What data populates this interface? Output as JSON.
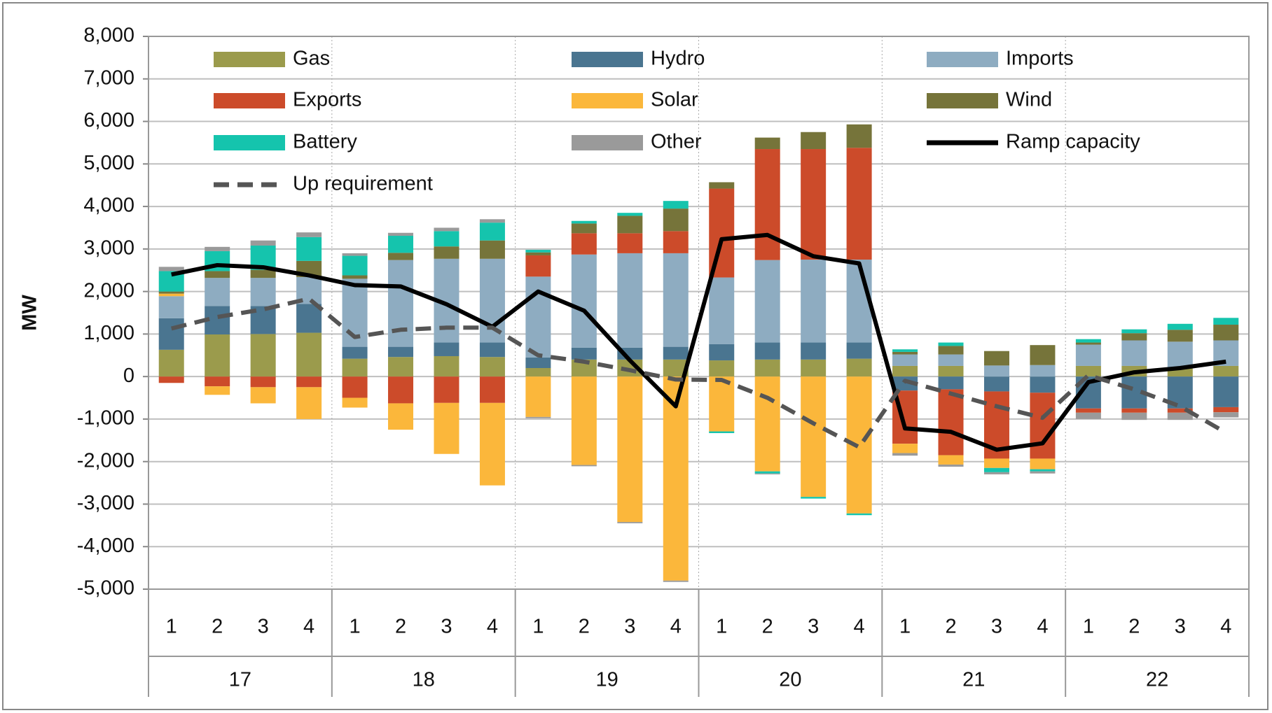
{
  "chart_data": {
    "type": "bar",
    "stacked": true,
    "ylabel": "MW",
    "ylim": [
      -5000,
      8000
    ],
    "yticks": [
      {
        "value": -5000,
        "label": "-5,000"
      },
      {
        "value": -4000,
        "label": "-4,000"
      },
      {
        "value": -3000,
        "label": "-3,000"
      },
      {
        "value": -2000,
        "label": "-2,000"
      },
      {
        "value": -1000,
        "label": "-1,000"
      },
      0,
      {
        "value": 1000,
        "label": "1,000"
      },
      {
        "value": 2000,
        "label": "2,000"
      },
      {
        "value": 3000,
        "label": "3,000"
      },
      {
        "value": 4000,
        "label": "4,000"
      },
      {
        "value": 5000,
        "label": "5,000"
      },
      {
        "value": 6000,
        "label": "6,000"
      },
      {
        "value": 7000,
        "label": "7,000"
      },
      {
        "value": 8000,
        "label": "8,000"
      }
    ],
    "grid": true,
    "categories": [
      "1",
      "2",
      "3",
      "4",
      "1",
      "2",
      "3",
      "4",
      "1",
      "2",
      "3",
      "4",
      "1",
      "2",
      "3",
      "4",
      "1",
      "2",
      "3",
      "4",
      "1",
      "2",
      "3",
      "4"
    ],
    "category_groups": [
      "17",
      "18",
      "19",
      "20",
      "21",
      "22"
    ],
    "series": [
      {
        "name": "Gas",
        "type": "bar",
        "color": "#9b9b4c",
        "values": [
          630,
          990,
          1000,
          1030,
          420,
          460,
          480,
          460,
          200,
          400,
          400,
          400,
          380,
          400,
          400,
          420,
          250,
          250,
          0,
          0,
          250,
          250,
          200,
          250
        ]
      },
      {
        "name": "Hydro",
        "type": "bar",
        "color": "#4a7590",
        "values": [
          740,
          670,
          660,
          680,
          280,
          240,
          320,
          340,
          250,
          280,
          280,
          300,
          380,
          400,
          400,
          380,
          -330,
          -300,
          -350,
          -380,
          -750,
          -750,
          -750,
          -720
        ]
      },
      {
        "name": "Imports",
        "type": "bar",
        "color": "#8eacc1",
        "values": [
          520,
          660,
          660,
          630,
          1600,
          2040,
          1970,
          1970,
          1900,
          2190,
          2220,
          2200,
          1570,
          1940,
          1950,
          1950,
          270,
          270,
          260,
          270,
          500,
          600,
          620,
          600
        ]
      },
      {
        "name": "Exports",
        "type": "bar",
        "color": "#cc4b2a",
        "values": [
          -150,
          -230,
          -250,
          -250,
          -500,
          -630,
          -620,
          -620,
          500,
          500,
          470,
          520,
          2090,
          2610,
          2600,
          2630,
          -1250,
          -1550,
          -1580,
          -1550,
          -100,
          -100,
          -100,
          -120
        ]
      },
      {
        "name": "Solar",
        "type": "bar",
        "color": "#fbb73b",
        "values": [
          60,
          -200,
          -380,
          -750,
          -230,
          -620,
          -1200,
          -1940,
          -950,
          -2080,
          -3420,
          -4800,
          -1290,
          -2230,
          -2830,
          -3220,
          -220,
          -220,
          -220,
          -250,
          0,
          0,
          0,
          0
        ]
      },
      {
        "name": "Wind",
        "type": "bar",
        "color": "#76743a",
        "values": [
          50,
          160,
          190,
          380,
          80,
          170,
          290,
          430,
          70,
          230,
          410,
          530,
          150,
          270,
          400,
          550,
          60,
          200,
          340,
          470,
          50,
          170,
          280,
          370
        ]
      },
      {
        "name": "Battery",
        "type": "bar",
        "color": "#15c4ad",
        "values": [
          480,
          470,
          570,
          560,
          460,
          400,
          360,
          420,
          60,
          60,
          70,
          180,
          -40,
          -50,
          -40,
          -40,
          60,
          80,
          -100,
          -50,
          80,
          90,
          140,
          160
        ]
      },
      {
        "name": "Other",
        "type": "bar",
        "color": "#9a9a9a",
        "values": [
          100,
          100,
          120,
          110,
          60,
          70,
          80,
          80,
          -30,
          -30,
          -30,
          -30,
          0,
          -20,
          0,
          0,
          -60,
          -50,
          -50,
          -50,
          -150,
          -170,
          -170,
          -120
        ]
      },
      {
        "name": "Ramp capacity",
        "type": "line",
        "color": "#000000",
        "dashed": false,
        "values": [
          2400,
          2620,
          2570,
          2380,
          2150,
          2120,
          1700,
          1170,
          2000,
          1550,
          380,
          -700,
          3230,
          3330,
          2830,
          2660,
          -1220,
          -1300,
          -1720,
          -1570,
          -130,
          100,
          200,
          350
        ]
      },
      {
        "name": "Up requirement",
        "type": "line",
        "color": "#555555",
        "dashed": true,
        "values": [
          1130,
          1400,
          1580,
          1830,
          930,
          1100,
          1150,
          1150,
          500,
          350,
          150,
          -70,
          -80,
          -500,
          -1100,
          -1660,
          -100,
          -400,
          -700,
          -970,
          30,
          -300,
          -700,
          -1320
        ]
      }
    ]
  }
}
